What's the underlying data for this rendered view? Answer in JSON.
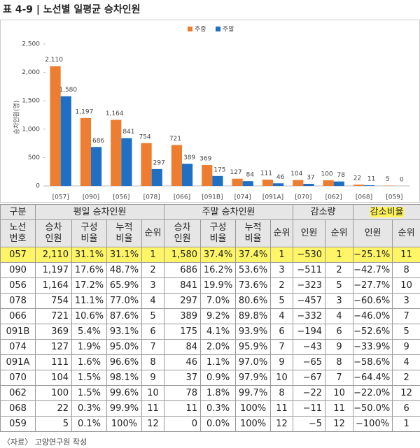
{
  "header": {
    "title": "표 4-9 | 노선별 일평균 승차인원"
  },
  "chart_data": {
    "type": "bar",
    "y_label": "승차인원(명)",
    "categories": [
      "[057]",
      "[090]",
      "[056]",
      "[078]",
      "[066]",
      "[091B]",
      "[074]",
      "[091A]",
      "[070]",
      "[062]",
      "[068]",
      "[059]"
    ],
    "series": [
      {
        "name": "주중",
        "color": "#ed7d31",
        "values": [
          2110,
          1197,
          1164,
          754,
          721,
          369,
          127,
          111,
          104,
          100,
          22,
          5
        ],
        "value_labels": [
          "2,110",
          "1,197",
          "1,164",
          "754",
          "721",
          "369",
          "127",
          "111",
          "104",
          "100",
          "22",
          "5"
        ]
      },
      {
        "name": "주말",
        "color": "#1f6fc5",
        "values": [
          1580,
          686,
          841,
          297,
          389,
          175,
          84,
          46,
          37,
          78,
          11,
          0
        ],
        "value_labels": [
          "1,580",
          "686",
          "841",
          "297",
          "389",
          "175",
          "84",
          "46",
          "37",
          "78",
          "11",
          "0"
        ]
      }
    ],
    "ylim": [
      0,
      2500
    ],
    "yticks": [
      0,
      500,
      {
        "value": 1000,
        "label": "1,000"
      },
      {
        "value": 1500,
        "label": "1,500"
      },
      {
        "value": 2000,
        "label": "2,000"
      },
      {
        "value": 2500,
        "label": "2,500"
      }
    ],
    "legend": "top"
  },
  "table": {
    "header_row1": [
      {
        "text": "구분",
        "span": 1
      },
      {
        "text": "평일 승차인원",
        "span": 4
      },
      {
        "text": "주말 승차인원",
        "span": 4
      },
      {
        "text": "감소량",
        "span": 2
      },
      {
        "text": "감소비율",
        "span": 2
      }
    ],
    "header_row2": [
      "노선\n번호",
      "승차\n인원",
      "구성\n비율",
      "누적\n비율",
      "순위",
      "승차\n인원",
      "구성\n비율",
      "누적\n비율",
      "순위",
      "인원",
      "순위",
      "인원",
      "순위"
    ],
    "rows": [
      [
        "057",
        "2,110",
        "31.1%",
        "31.1%",
        "1",
        "1,580",
        "37.4%",
        "37.4%",
        "1",
        "−530",
        "1",
        "−25.1%",
        "11"
      ],
      [
        "090",
        "1,197",
        "17.6%",
        "48.7%",
        "2",
        "686",
        "16.2%",
        "53.6%",
        "3",
        "−511",
        "2",
        "−42.7%",
        "8"
      ],
      [
        "056",
        "1,164",
        "17.2%",
        "65.9%",
        "3",
        "841",
        "19.9%",
        "73.6%",
        "2",
        "−323",
        "5",
        "−27.7%",
        "10"
      ],
      [
        "078",
        "754",
        "11.1%",
        "77.0%",
        "4",
        "297",
        "7.0%",
        "80.6%",
        "5",
        "−457",
        "3",
        "−60.6%",
        "3"
      ],
      [
        "066",
        "721",
        "10.6%",
        "87.6%",
        "5",
        "389",
        "9.2%",
        "89.8%",
        "4",
        "−332",
        "4",
        "−46.0%",
        "7"
      ],
      [
        "091B",
        "369",
        "5.4%",
        "93.1%",
        "6",
        "175",
        "4.1%",
        "93.9%",
        "6",
        "−194",
        "6",
        "−52.6%",
        "5"
      ],
      [
        "074",
        "127",
        "1.9%",
        "95.0%",
        "7",
        "84",
        "2.0%",
        "95.9%",
        "7",
        "−43",
        "9",
        "−33.9%",
        "9"
      ],
      [
        "091A",
        "111",
        "1.6%",
        "96.6%",
        "8",
        "46",
        "1.1%",
        "97.0%",
        "9",
        "−65",
        "8",
        "−58.6%",
        "4"
      ],
      [
        "070",
        "104",
        "1.5%",
        "98.1%",
        "9",
        "37",
        "0.9%",
        "97.9%",
        "10",
        "−67",
        "7",
        "−64.4%",
        "2"
      ],
      [
        "062",
        "100",
        "1.5%",
        "99.6%",
        "10",
        "78",
        "1.8%",
        "99.7%",
        "8",
        "−22",
        "10",
        "−22.0%",
        "12"
      ],
      [
        "068",
        "22",
        "0.3%",
        "99.9%",
        "11",
        "11",
        "0.3%",
        "100%",
        "11",
        "−11",
        "11",
        "−50.0%",
        "6"
      ],
      [
        "059",
        "5",
        "0.1%",
        "100%",
        "12",
        "0",
        "0.0%",
        "100%",
        "12",
        "−5",
        "12",
        "−100%",
        "1"
      ]
    ]
  },
  "footer": {
    "source": "〈자료〉 고양연구원 작성"
  }
}
